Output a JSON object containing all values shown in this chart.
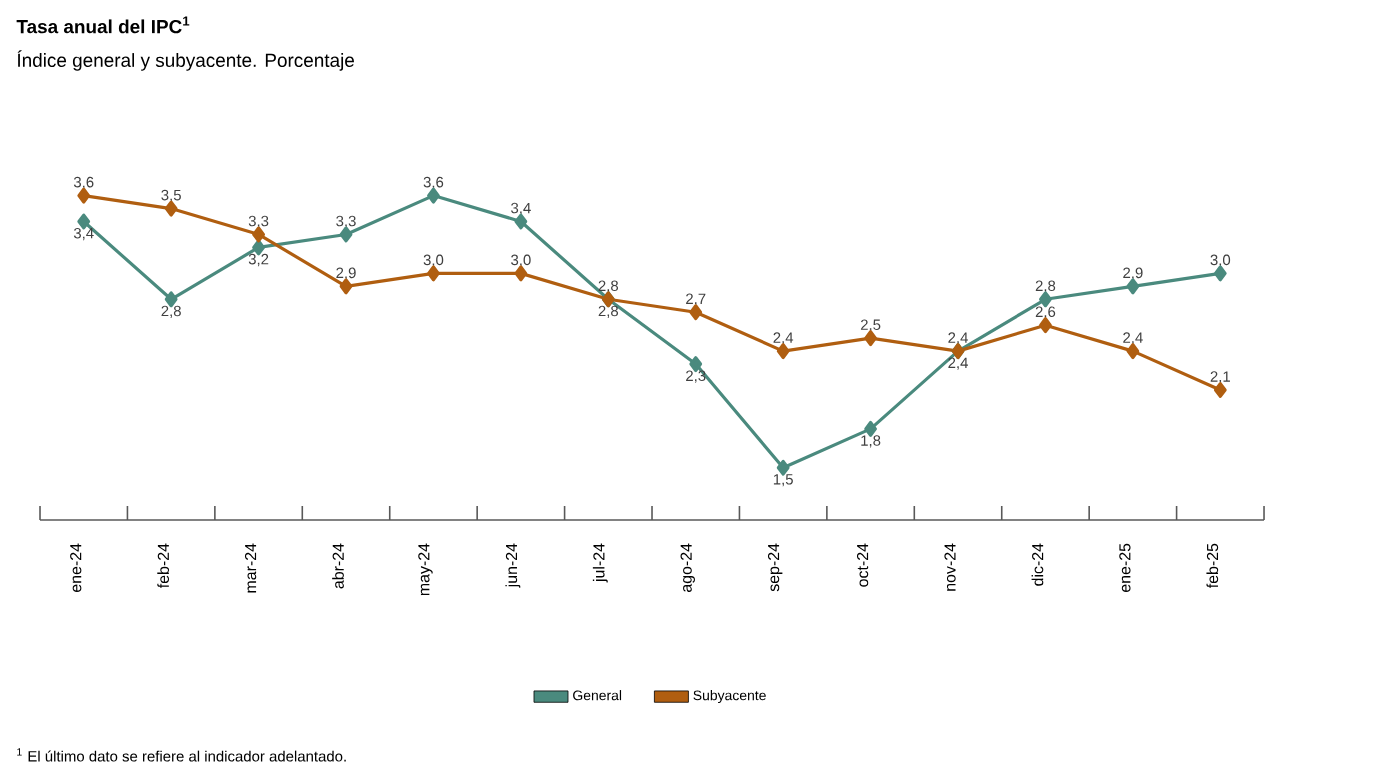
{
  "chart_data": {
    "type": "line",
    "title": "Tasa anual del IPC$^{1}$",
    "subtitle": "Índice general y subyacente. Porcentaje",
    "categories": [
      "ene-24",
      "feb-24",
      "mar-24",
      "abr-24",
      "may-24",
      "jun-24",
      "jul-24",
      "ago-24",
      "sep-24",
      "oct-24",
      "nov-24",
      "dic-24",
      "ene-25",
      "feb-25"
    ],
    "series": [
      {
        "name": "General",
        "color": "#4a8a7e",
        "values": [
          3.4,
          2.8,
          3.2,
          3.3,
          3.6,
          3.4,
          2.8,
          2.3,
          1.5,
          1.8,
          2.4,
          2.8,
          2.9,
          3.0
        ],
        "value_labels": [
          "3,4",
          "2,8",
          "3,2",
          "3,3",
          "3,6",
          "3,4",
          "2,8",
          "2,3",
          "1,5",
          "1,8",
          "2,4",
          "2,8",
          "2,9",
          "3,0"
        ]
      },
      {
        "name": "Subyacente",
        "color": "#b05e10",
        "values": [
          3.6,
          3.5,
          3.3,
          2.9,
          3.0,
          3.0,
          2.8,
          2.7,
          2.4,
          2.5,
          2.4,
          2.6,
          2.4,
          2.1
        ],
        "value_labels": [
          "3,6",
          "3,5",
          "3,3",
          "2,9",
          "3,0",
          "3,0",
          "2,8",
          "2,7",
          "2,4",
          "2,5",
          "2,4",
          "2,6",
          "2,4",
          "2,1"
        ]
      }
    ],
    "marker": "diamond",
    "line_style": "solid",
    "legend": "bottom",
    "grid": false,
    "annotations": [
      "$^{1}$ El último dato se refiere al indicador adelantado."
    ]
  }
}
